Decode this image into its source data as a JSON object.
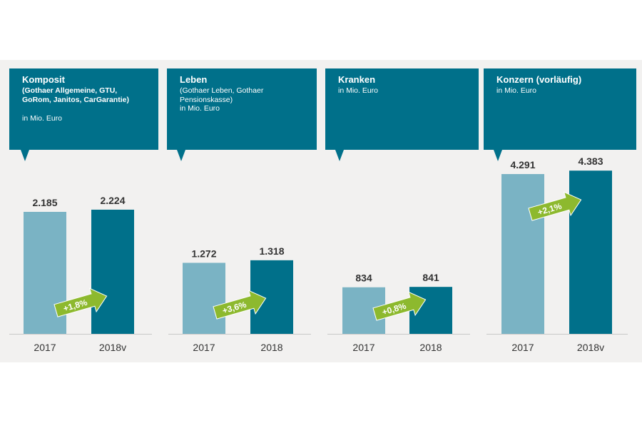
{
  "colors": {
    "header": "#00708a",
    "bar_prior": "#7ab3c4",
    "bar_current": "#00708a",
    "arrow": "#8db92e",
    "background": "#f2f1f0",
    "value_text": "#333333"
  },
  "panels": [
    {
      "title": "Komposit",
      "subtitle": "(Gothaer Allgemeine, GTU,\nGoRom, Janitos, CarGarantie)",
      "unit": "in Mio.  Euro"
    },
    {
      "title": "Leben",
      "subtitle": "(Gothaer Leben, Gothaer\nPensionskasse)",
      "unit": "in Mio.  Euro"
    },
    {
      "title": "Kranken",
      "subtitle": "",
      "unit": "in Mio.  Euro"
    },
    {
      "title": "Konzern (vorläufig)",
      "subtitle": "",
      "unit": "in Mio.  Euro"
    }
  ],
  "chart_data": [
    {
      "type": "bar",
      "title": "Komposit",
      "categories": [
        "2017",
        "2018v"
      ],
      "values": [
        2185,
        2224
      ],
      "value_labels": [
        "2.185",
        "2.224"
      ],
      "change_label": "+1,8%"
    },
    {
      "type": "bar",
      "title": "Leben",
      "categories": [
        "2017",
        "2018"
      ],
      "values": [
        1272,
        1318
      ],
      "value_labels": [
        "1.272",
        "1.318"
      ],
      "change_label": "+3,6%"
    },
    {
      "type": "bar",
      "title": "Kranken",
      "categories": [
        "2017",
        "2018"
      ],
      "values": [
        834,
        841
      ],
      "value_labels": [
        "834",
        "841"
      ],
      "change_label": "+0,8%"
    },
    {
      "type": "bar",
      "title": "Konzern (vorläufig)",
      "categories": [
        "2017",
        "2018v"
      ],
      "values": [
        4291,
        4383
      ],
      "value_labels": [
        "4.291",
        "4.383"
      ],
      "change_label": "+2,1%"
    }
  ]
}
